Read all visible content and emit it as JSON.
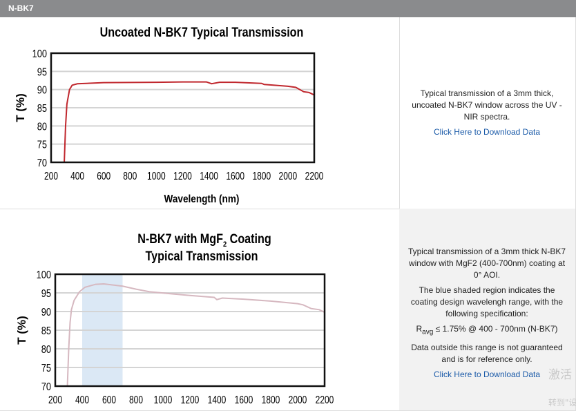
{
  "header": {
    "title": "N-BK7"
  },
  "rows": [
    {
      "description": [
        "Typical transmission of a 3mm thick, uncoated N-BK7 window across the UV - NIR spectra."
      ],
      "download_label": "Click Here to Download Data"
    },
    {
      "description": [
        "Typical transmission of a 3mm thick N-BK7 window with MgF2 (400-700nm) coating at 0° AOI.",
        "The blue shaded region indicates the coating design wavelengh range, with the following specification:"
      ],
      "spec": {
        "symbol": "R",
        "subscript": "avg",
        "text": "≤ 1.75% @ 400 - 700nm (N-BK7)"
      },
      "note": "Data outside this range is not guaranteed and is for reference only.",
      "download_label": "Click Here to Download Data"
    }
  ],
  "watermark": {
    "line1": "激活 W",
    "line2": "转到\"设置"
  },
  "chart_data": [
    {
      "type": "line",
      "title": "Uncoated N-BK7 Typical Transmission",
      "xlabel": "Wavelength (nm)",
      "ylabel": "T (%)",
      "xlim": [
        200,
        2200
      ],
      "ylim": [
        70,
        100
      ],
      "xticks": [
        200,
        400,
        600,
        800,
        1000,
        1200,
        1400,
        1600,
        1800,
        2000,
        2200
      ],
      "yticks": [
        70,
        75,
        80,
        85,
        90,
        95,
        100
      ],
      "grid": true,
      "color": "#c0272d",
      "x": [
        300,
        310,
        320,
        340,
        360,
        400,
        600,
        1000,
        1200,
        1380,
        1420,
        1480,
        1600,
        1800,
        1820,
        2000,
        2060,
        2120,
        2160,
        2200
      ],
      "y": [
        70,
        80,
        86,
        90,
        91.2,
        91.6,
        91.9,
        92.0,
        92.1,
        92.1,
        91.6,
        92.0,
        92.0,
        91.7,
        91.4,
        90.9,
        90.6,
        89.4,
        89.2,
        88.5
      ]
    },
    {
      "type": "line",
      "title_line1": "N-BK7 with MgF",
      "title_sub": "2",
      "title_line1_end": " Coating",
      "title_line2": "Typical Transmission",
      "ylabel": "T (%)",
      "xlim": [
        200,
        2200
      ],
      "ylim": [
        70,
        100
      ],
      "xticks": [
        200,
        400,
        600,
        800,
        1000,
        1200,
        1400,
        1600,
        1800,
        2000,
        2200
      ],
      "yticks": [
        70,
        75,
        80,
        85,
        90,
        95,
        100
      ],
      "grid": true,
      "color": "#d6b8c0",
      "shaded_range": [
        400,
        700
      ],
      "shade_color": "#dbe8f5",
      "x": [
        290,
        300,
        310,
        320,
        340,
        380,
        420,
        500,
        560,
        700,
        800,
        900,
        1200,
        1380,
        1400,
        1440,
        1600,
        1800,
        2000,
        2040,
        2100,
        2160,
        2200
      ],
      "y": [
        70,
        80,
        87,
        90.5,
        93,
        95.3,
        96.5,
        97.3,
        97.4,
        96.8,
        96,
        95.3,
        94.3,
        93.8,
        93.2,
        93.6,
        93.3,
        92.8,
        92.1,
        91.8,
        90.8,
        90.5,
        89.8
      ]
    }
  ]
}
